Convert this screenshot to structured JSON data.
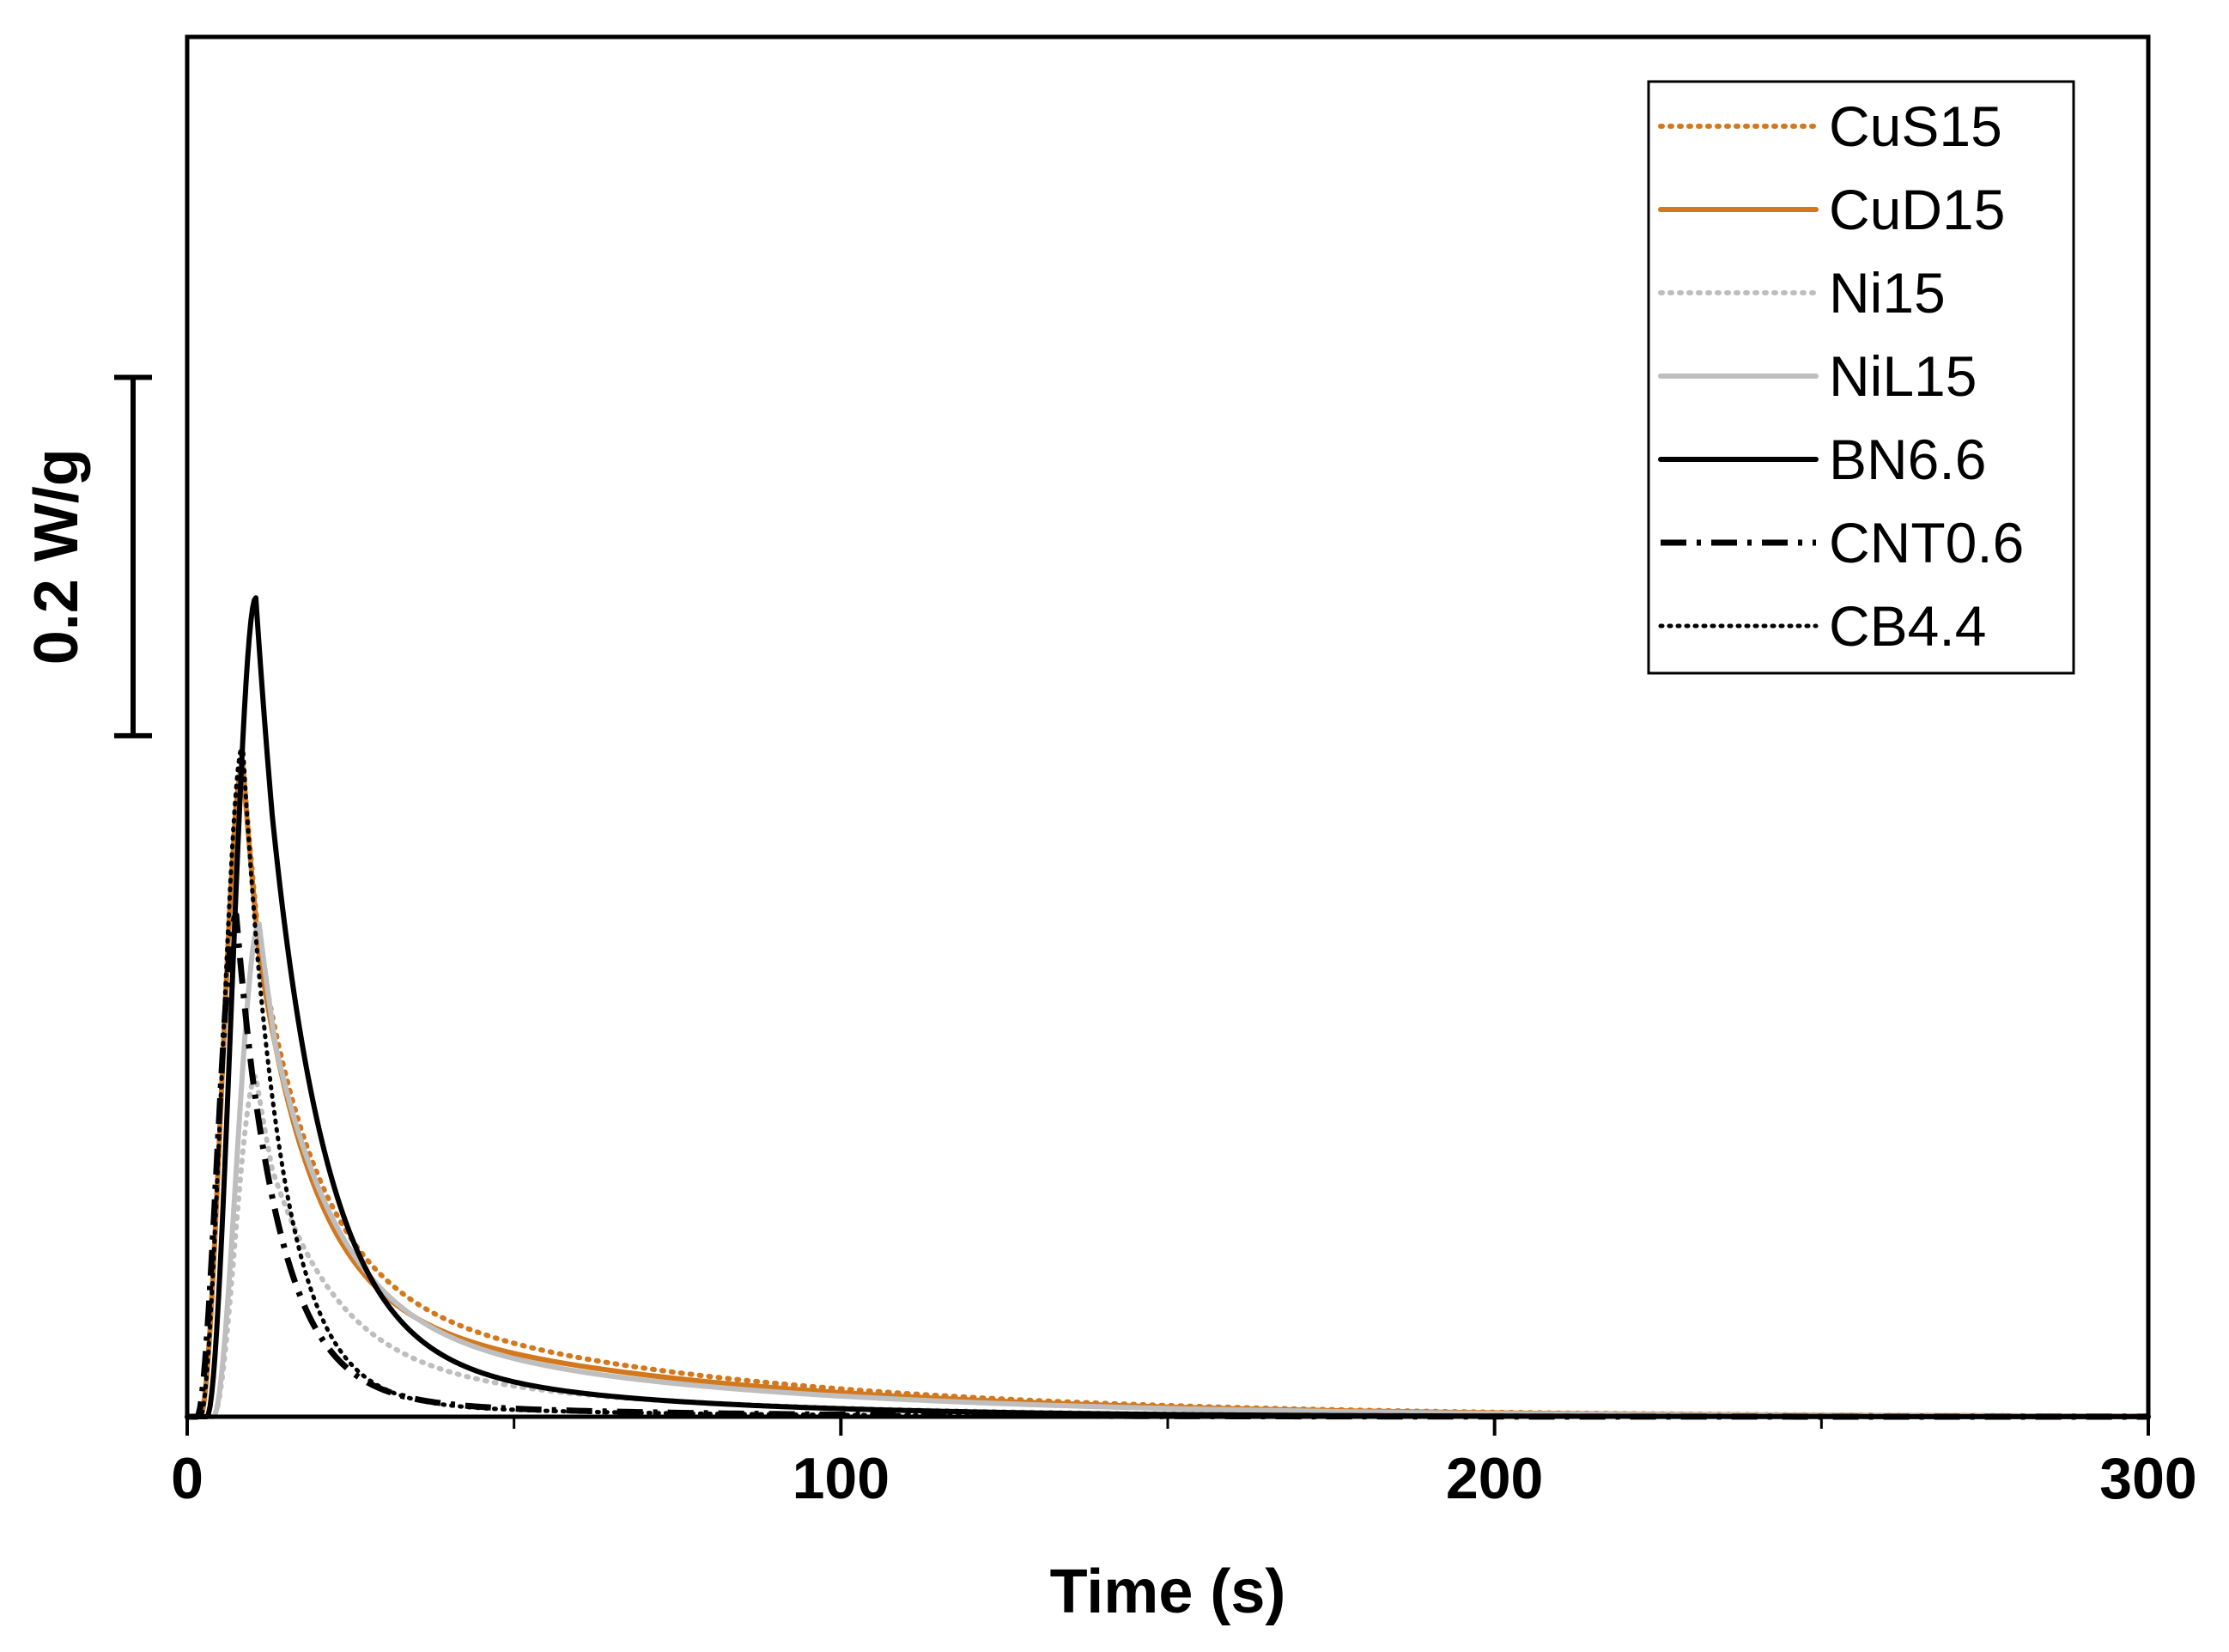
{
  "chart_data": {
    "type": "line",
    "title": "",
    "xlabel": "Time (s)",
    "ylabel": "",
    "xlim": [
      0,
      300
    ],
    "ylim": [
      0,
      0.77
    ],
    "x_ticks": [
      0,
      100,
      200,
      300
    ],
    "x_tick_labels": [
      "0",
      "100",
      "200",
      "300"
    ],
    "x_minor_ticks": [
      50,
      150,
      250
    ],
    "y_ticks": [],
    "scale_bar": {
      "label": "0.2 W/g",
      "from": 0.38,
      "to": 0.58
    },
    "grid": false,
    "legend_position": "top-right",
    "series": [
      {
        "name": "CuS15",
        "color": "#D2781E",
        "style": "dotted",
        "weight": "heavy",
        "onset": 2.0,
        "peak_time": 8.5,
        "peak": 0.365,
        "fast_amp": 0.245,
        "fast_tau": 9.0,
        "slow_amp": 0.082,
        "slow_tau": 55.0
      },
      {
        "name": "CuD15",
        "color": "#D2781E",
        "style": "solid",
        "weight": "heavy",
        "onset": 2.0,
        "peak_time": 8.5,
        "peak": 0.363,
        "fast_amp": 0.256,
        "fast_tau": 8.5,
        "slow_amp": 0.071,
        "slow_tau": 55.0
      },
      {
        "name": "Ni15",
        "color": "#BEBEBE",
        "style": "dotted",
        "weight": "heavy",
        "onset": 4.0,
        "peak_time": 10.5,
        "peak": 0.19,
        "fast_amp": 0.135,
        "fast_tau": 10.0,
        "slow_amp": 0.035,
        "slow_tau": 45.0
      },
      {
        "name": "NiL15",
        "color": "#BEBEBE",
        "style": "solid",
        "weight": "heavy",
        "onset": 4.0,
        "peak_time": 11.0,
        "peak": 0.275,
        "fast_amp": 0.195,
        "fast_tau": 10.0,
        "slow_amp": 0.058,
        "slow_tau": 55.0
      },
      {
        "name": "BN6.6",
        "color": "#000000",
        "style": "solid",
        "weight": "heavy",
        "onset": 3.0,
        "peak_time": 10.5,
        "peak": 0.457,
        "fast_amp": 0.398,
        "fast_tau": 8.5,
        "slow_amp": 0.042,
        "slow_tau": 40.0
      },
      {
        "name": "CNT0.6",
        "color": "#000000",
        "style": "dashdot",
        "weight": "heavy",
        "onset": 1.5,
        "peak_time": 7.5,
        "peak": 0.28,
        "fast_amp": 0.262,
        "fast_tau": 6.5,
        "slow_amp": 0.012,
        "slow_tau": 40.0
      },
      {
        "name": "CB4.4",
        "color": "#000000",
        "style": "dotted",
        "weight": "light",
        "onset": 2.0,
        "peak_time": 8.5,
        "peak": 0.375,
        "fast_amp": 0.36,
        "fast_tau": 6.0,
        "slow_amp": 0.01,
        "slow_tau": 40.0
      }
    ]
  }
}
